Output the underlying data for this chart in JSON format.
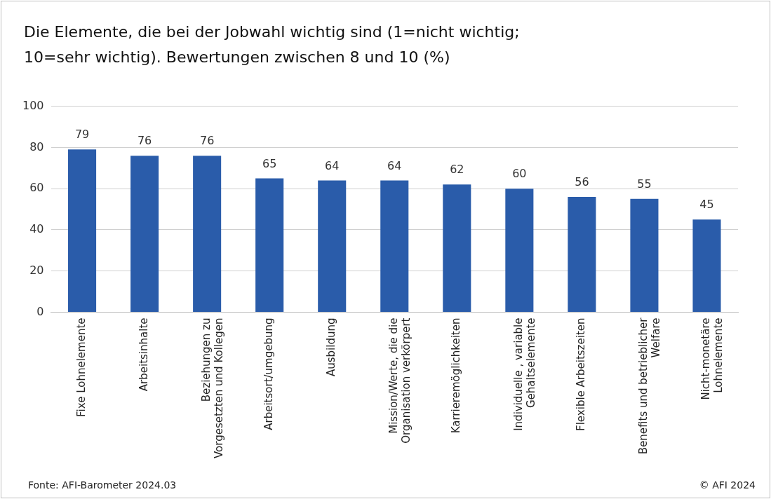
{
  "chart_data": {
    "type": "bar",
    "title": "Die Elemente, die bei der Jobwahl wichtig sind (1=nicht wichtig;\n10=sehr wichtig). Bewertungen zwischen 8 und 10 (%)",
    "categories": [
      "Fixe Lohnelemente",
      "Arbeitsinhalte",
      "Beziehungen zu\nVorgesetzten und Kollegen",
      "Arbeitsort/umgebung",
      "Ausbildung",
      "Mission/Werte, die die\nOrganisation verkörpert",
      "Karrieremöglichkeiten",
      "Individuelle , variable\nGehaltselemente",
      "Flexible Arbeitszeiten",
      "Benefits und betrieblicher\nWelfare",
      "Nicht-monetäre\nLohnelemente"
    ],
    "values": [
      79,
      76,
      76,
      65,
      64,
      64,
      62,
      60,
      56,
      55,
      45
    ],
    "color": "#2a5caa",
    "ylim": [
      0,
      100
    ],
    "yticks": [
      0,
      20,
      40,
      60,
      80,
      100
    ],
    "grid": "y",
    "data_labels": true,
    "annotations": [
      "Fonte: AFI-Barometer 2024.03",
      "© AFI 2024"
    ]
  }
}
